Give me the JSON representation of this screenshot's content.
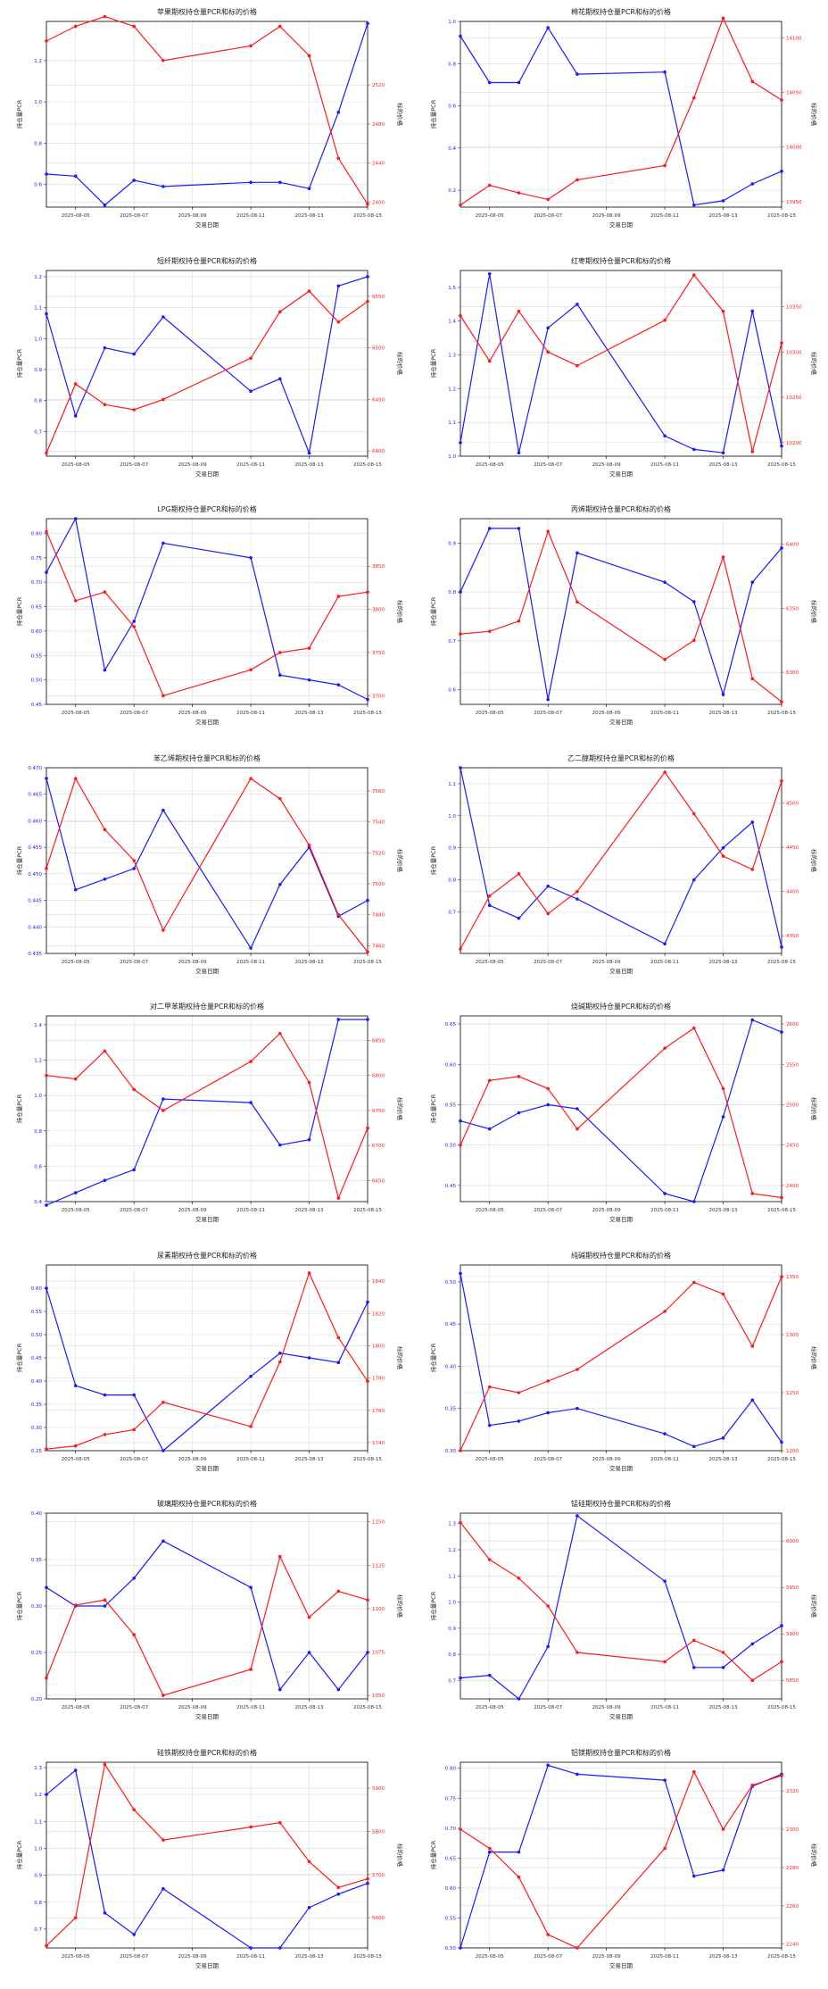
{
  "x_ticks": [
    "2025-08-05",
    "2025-08-07",
    "2025-08-09",
    "2025-08-11",
    "2025-08-13",
    "2025-08-15"
  ],
  "x_values": [
    "2025-08-04",
    "2025-08-05",
    "2025-08-06",
    "2025-08-07",
    "2025-08-08",
    "2025-08-11",
    "2025-08-12",
    "2025-08-13",
    "2025-08-14",
    "2025-08-15"
  ],
  "colors": {
    "pcr": "#1a1aff",
    "price": "#ff1a1a",
    "grid": "#dddddd",
    "axis": "#000000"
  },
  "chart_data": [
    {
      "type": "line",
      "title": "苹果期权持仓量PCR和标的价格",
      "xlabel": "交易日期",
      "ylabel_left": "持仓量PCR",
      "ylabel_right": "标的价格",
      "left_ticks": [
        0.6,
        0.8,
        1.0,
        1.2
      ],
      "right_ticks": [
        2400,
        2440,
        2480,
        2520
      ],
      "ylim_left": [
        0.49,
        1.39
      ],
      "ylim_right": [
        2395,
        2585
      ],
      "series": [
        {
          "axis": "left",
          "values": [
            0.65,
            0.64,
            0.5,
            0.62,
            0.59,
            0.61,
            0.61,
            0.58,
            0.95,
            1.38
          ]
        },
        {
          "axis": "right",
          "values": [
            2565,
            2580,
            2590,
            2580,
            2545,
            2560,
            2580,
            2550,
            2445,
            2398
          ]
        }
      ]
    },
    {
      "type": "line",
      "title": "棉花期权持仓量PCR和标的价格",
      "xlabel": "交易日期",
      "ylabel_left": "持仓量PCR",
      "ylabel_right": "标的价格",
      "left_ticks": [
        0.2,
        0.4,
        0.6,
        0.8,
        1.0
      ],
      "right_ticks": [
        13950,
        14000,
        14050,
        14100
      ],
      "ylim_left": [
        0.12,
        1.0
      ],
      "ylim_right": [
        13945,
        14115
      ],
      "series": [
        {
          "axis": "left",
          "values": [
            0.93,
            0.71,
            0.71,
            0.97,
            0.75,
            0.76,
            0.13,
            0.15,
            0.23,
            0.29
          ]
        },
        {
          "axis": "right",
          "values": [
            13947,
            13965,
            13958,
            13952,
            13970,
            13983,
            14045,
            14118,
            14060,
            14043
          ]
        }
      ]
    },
    {
      "type": "line",
      "title": "短纤期权持仓量PCR和标的价格",
      "xlabel": "交易日期",
      "ylabel_left": "持仓量PCR",
      "ylabel_right": "标的价格",
      "left_ticks": [
        0.7,
        0.8,
        0.9,
        1.0,
        1.1,
        1.2
      ],
      "right_ticks": [
        6400,
        6450,
        6500,
        6550
      ],
      "ylim_left": [
        0.62,
        1.22
      ],
      "ylim_right": [
        6395,
        6575
      ],
      "series": [
        {
          "axis": "left",
          "values": [
            1.08,
            0.75,
            0.97,
            0.95,
            1.07,
            0.83,
            0.87,
            0.63,
            1.17,
            1.2
          ]
        },
        {
          "axis": "right",
          "values": [
            6398,
            6465,
            6445,
            6440,
            6450,
            6490,
            6535,
            6555,
            6525,
            6545
          ]
        }
      ]
    },
    {
      "type": "line",
      "title": "红枣期权持仓量PCR和标的价格",
      "xlabel": "交易日期",
      "ylabel_left": "持仓量PCR",
      "ylabel_right": "标的价格",
      "left_ticks": [
        1.0,
        1.1,
        1.2,
        1.3,
        1.4,
        1.5
      ],
      "right_ticks": [
        10200,
        10250,
        10300,
        10350
      ],
      "ylim_left": [
        1.0,
        1.55
      ],
      "ylim_right": [
        10185,
        10390
      ],
      "series": [
        {
          "axis": "left",
          "values": [
            1.04,
            1.54,
            1.01,
            1.38,
            1.45,
            1.06,
            1.02,
            1.01,
            1.43,
            1.03
          ]
        },
        {
          "axis": "right",
          "values": [
            10340,
            10290,
            10345,
            10300,
            10285,
            10335,
            10385,
            10345,
            10190,
            10310
          ]
        }
      ]
    },
    {
      "type": "line",
      "title": "LPG期权持仓量PCR和标的价格",
      "xlabel": "交易日期",
      "ylabel_left": "持仓量PCR",
      "ylabel_right": "标的价格",
      "left_ticks": [
        0.45,
        0.5,
        0.55,
        0.6,
        0.65,
        0.7,
        0.75,
        0.8
      ],
      "right_ticks": [
        3700,
        3750,
        3800,
        3850
      ],
      "ylim_left": [
        0.45,
        0.83
      ],
      "ylim_right": [
        3690,
        3905
      ],
      "series": [
        {
          "axis": "left",
          "values": [
            0.72,
            0.83,
            0.52,
            0.62,
            0.78,
            0.75,
            0.51,
            0.5,
            0.49,
            0.46
          ]
        },
        {
          "axis": "right",
          "values": [
            3890,
            3810,
            3820,
            3780,
            3700,
            3730,
            3750,
            3755,
            3815,
            3820
          ]
        }
      ]
    },
    {
      "type": "line",
      "title": "丙烯期权持仓量PCR和标的价格",
      "xlabel": "交易日期",
      "ylabel_left": "持仓量PCR",
      "ylabel_right": "标的价格",
      "left_ticks": [
        0.6,
        0.7,
        0.8,
        0.9
      ],
      "right_ticks": [
        6300,
        6350,
        6400
      ],
      "ylim_left": [
        0.57,
        0.95
      ],
      "ylim_right": [
        6275,
        6420
      ],
      "series": [
        {
          "axis": "left",
          "values": [
            0.8,
            0.93,
            0.93,
            0.58,
            0.88,
            0.82,
            0.78,
            0.59,
            0.82,
            0.89
          ]
        },
        {
          "axis": "right",
          "values": [
            6330,
            6332,
            6340,
            6410,
            6355,
            6310,
            6325,
            6390,
            6295,
            6277
          ]
        }
      ]
    },
    {
      "type": "line",
      "title": "苯乙烯期权持仓量PCR和标的价格",
      "xlabel": "交易日期",
      "ylabel_left": "持仓量PCR",
      "ylabel_right": "标的价格",
      "left_ticks": [
        0.435,
        0.44,
        0.445,
        0.45,
        0.455,
        0.46,
        0.465,
        0.47
      ],
      "right_ticks": [
        7460,
        7480,
        7500,
        7520,
        7540,
        7560
      ],
      "ylim_left": [
        0.435,
        0.47
      ],
      "ylim_right": [
        7455,
        7575
      ],
      "series": [
        {
          "axis": "left",
          "values": [
            0.468,
            0.447,
            0.449,
            0.451,
            0.462,
            0.436,
            0.448,
            0.455,
            0.442,
            0.445
          ]
        },
        {
          "axis": "right",
          "values": [
            7510,
            7568,
            7535,
            7515,
            7470,
            7568,
            7555,
            7525,
            7480,
            7456
          ]
        }
      ]
    },
    {
      "type": "line",
      "title": "乙二醇期权持仓量PCR和标的价格",
      "xlabel": "交易日期",
      "ylabel_left": "持仓量PCR",
      "ylabel_right": "标的价格",
      "left_ticks": [
        0.7,
        0.8,
        0.9,
        1.0,
        1.1
      ],
      "right_ticks": [
        4350,
        4400,
        4450,
        4500
      ],
      "ylim_left": [
        0.57,
        1.15
      ],
      "ylim_right": [
        4330,
        4540
      ],
      "series": [
        {
          "axis": "left",
          "values": [
            1.15,
            0.72,
            0.68,
            0.78,
            0.74,
            0.6,
            0.8,
            0.9,
            0.98,
            0.59
          ]
        },
        {
          "axis": "right",
          "values": [
            4335,
            4395,
            4420,
            4375,
            4400,
            4535,
            4488,
            4440,
            4425,
            4525
          ]
        }
      ]
    },
    {
      "type": "line",
      "title": "对二甲苯期权持仓量PCR和标的价格",
      "xlabel": "交易日期",
      "ylabel_left": "持仓量PCR",
      "ylabel_right": "标的价格",
      "left_ticks": [
        0.4,
        0.6,
        0.8,
        1.0,
        1.2,
        1.4
      ],
      "right_ticks": [
        6650,
        6700,
        6750,
        6800,
        6850
      ],
      "ylim_left": [
        0.4,
        1.45
      ],
      "ylim_right": [
        6620,
        6885
      ],
      "series": [
        {
          "axis": "left",
          "values": [
            0.38,
            0.45,
            0.52,
            0.58,
            0.98,
            0.96,
            0.72,
            0.75,
            1.43,
            1.43
          ]
        },
        {
          "axis": "right",
          "values": [
            6800,
            6795,
            6835,
            6780,
            6750,
            6820,
            6860,
            6790,
            6625,
            6725
          ]
        }
      ]
    },
    {
      "type": "line",
      "title": "烧碱期权持仓量PCR和标的价格",
      "xlabel": "交易日期",
      "ylabel_left": "持仓量PCR",
      "ylabel_right": "标的价格",
      "left_ticks": [
        0.45,
        0.5,
        0.55,
        0.6,
        0.65
      ],
      "right_ticks": [
        2400,
        2450,
        2500,
        2550,
        2600
      ],
      "ylim_left": [
        0.43,
        0.66
      ],
      "ylim_right": [
        2380,
        2610
      ],
      "series": [
        {
          "axis": "left",
          "values": [
            0.53,
            0.52,
            0.54,
            0.55,
            0.545,
            0.44,
            0.43,
            0.535,
            0.655,
            0.64
          ]
        },
        {
          "axis": "right",
          "values": [
            2450,
            2530,
            2535,
            2520,
            2470,
            2570,
            2595,
            2520,
            2390,
            2385
          ]
        }
      ]
    },
    {
      "type": "line",
      "title": "尿素期权持仓量PCR和标的价格",
      "xlabel": "交易日期",
      "ylabel_left": "持仓量PCR",
      "ylabel_right": "标的价格",
      "left_ticks": [
        0.25,
        0.3,
        0.35,
        0.4,
        0.45,
        0.5,
        0.55,
        0.6
      ],
      "right_ticks": [
        1740,
        1760,
        1780,
        1800,
        1820,
        1840
      ],
      "ylim_left": [
        0.25,
        0.65
      ],
      "ylim_right": [
        1735,
        1850
      ],
      "series": [
        {
          "axis": "left",
          "values": [
            0.6,
            0.39,
            0.37,
            0.37,
            0.25,
            0.41,
            0.46,
            0.45,
            0.44,
            0.57
          ]
        },
        {
          "axis": "right",
          "values": [
            1736,
            1738,
            1745,
            1748,
            1765,
            1750,
            1790,
            1845,
            1805,
            1778
          ]
        }
      ]
    },
    {
      "type": "line",
      "title": "纯碱期权持仓量PCR和标的价格",
      "xlabel": "交易日期",
      "ylabel_left": "持仓量PCR",
      "ylabel_right": "标的价格",
      "left_ticks": [
        0.3,
        0.35,
        0.4,
        0.45,
        0.5
      ],
      "right_ticks": [
        1200,
        1250,
        1300,
        1350
      ],
      "ylim_left": [
        0.3,
        0.52
      ],
      "ylim_right": [
        1200,
        1360
      ],
      "series": [
        {
          "axis": "left",
          "values": [
            0.51,
            0.33,
            0.335,
            0.345,
            0.35,
            0.32,
            0.305,
            0.315,
            0.36,
            0.31
          ]
        },
        {
          "axis": "right",
          "values": [
            1200,
            1255,
            1250,
            1260,
            1270,
            1320,
            1345,
            1335,
            1290,
            1350
          ]
        }
      ]
    },
    {
      "type": "line",
      "title": "玻璃期权持仓量PCR和标的价格",
      "xlabel": "交易日期",
      "ylabel_left": "持仓量PCR",
      "ylabel_right": "标的价格",
      "left_ticks": [
        0.2,
        0.25,
        0.3,
        0.35,
        0.4
      ],
      "right_ticks": [
        1050,
        1075,
        1100,
        1125,
        1150
      ],
      "ylim_left": [
        0.2,
        0.4
      ],
      "ylim_right": [
        1048,
        1155
      ],
      "series": [
        {
          "axis": "left",
          "values": [
            0.32,
            0.3,
            0.3,
            0.33,
            0.37,
            0.32,
            0.21,
            0.25,
            0.21,
            0.25
          ]
        },
        {
          "axis": "right",
          "values": [
            1060,
            1102,
            1105,
            1085,
            1050,
            1065,
            1130,
            1095,
            1110,
            1105
          ]
        }
      ]
    },
    {
      "type": "line",
      "title": "锰硅期权持仓量PCR和标的价格",
      "xlabel": "交易日期",
      "ylabel_left": "持仓量PCR",
      "ylabel_right": "标的价格",
      "left_ticks": [
        0.7,
        0.8,
        0.9,
        1.0,
        1.1,
        1.2,
        1.3
      ],
      "right_ticks": [
        5850,
        5900,
        5950,
        6000
      ],
      "ylim_left": [
        0.63,
        1.34
      ],
      "ylim_right": [
        5830,
        6030
      ],
      "series": [
        {
          "axis": "left",
          "values": [
            0.71,
            0.72,
            0.63,
            0.83,
            1.33,
            1.08,
            0.75,
            0.75,
            0.84,
            0.91
          ]
        },
        {
          "axis": "right",
          "values": [
            6020,
            5980,
            5960,
            5930,
            5880,
            5870,
            5893,
            5880,
            5850,
            5870
          ]
        }
      ]
    },
    {
      "type": "line",
      "title": "硅铁期权持仓量PCR和标的价格",
      "xlabel": "交易日期",
      "ylabel_left": "持仓量PCR",
      "ylabel_right": "标的价格",
      "left_ticks": [
        0.7,
        0.8,
        0.9,
        1.0,
        1.1,
        1.2,
        1.3
      ],
      "right_ticks": [
        5600,
        5700,
        5800,
        5900
      ],
      "ylim_left": [
        0.63,
        1.32
      ],
      "ylim_right": [
        5530,
        5960
      ],
      "series": [
        {
          "axis": "left",
          "values": [
            1.2,
            1.29,
            0.76,
            0.68,
            0.85,
            0.63,
            0.63,
            0.78,
            0.83,
            0.87
          ]
        },
        {
          "axis": "right",
          "values": [
            5535,
            5600,
            5955,
            5850,
            5780,
            5810,
            5820,
            5730,
            5670,
            5690
          ]
        }
      ]
    },
    {
      "type": "line",
      "title": "铝镁期权持仓量PCR和标的价格",
      "xlabel": "交易日期",
      "ylabel_left": "持仓量PCR",
      "ylabel_right": "标的价格",
      "left_ticks": [
        0.5,
        0.55,
        0.6,
        0.65,
        0.7,
        0.75,
        0.8
      ],
      "right_ticks": [
        2240,
        2260,
        2280,
        2300,
        2320
      ],
      "ylim_left": [
        0.5,
        0.81
      ],
      "ylim_right": [
        2238,
        2335
      ],
      "series": [
        {
          "axis": "left",
          "values": [
            0.5,
            0.66,
            0.66,
            0.805,
            0.79,
            0.78,
            0.62,
            0.63,
            0.77,
            0.79
          ]
        },
        {
          "axis": "right",
          "values": [
            2300,
            2290,
            2275,
            2245,
            2238,
            2290,
            2330,
            2300,
            2323,
            2328
          ]
        }
      ]
    }
  ]
}
